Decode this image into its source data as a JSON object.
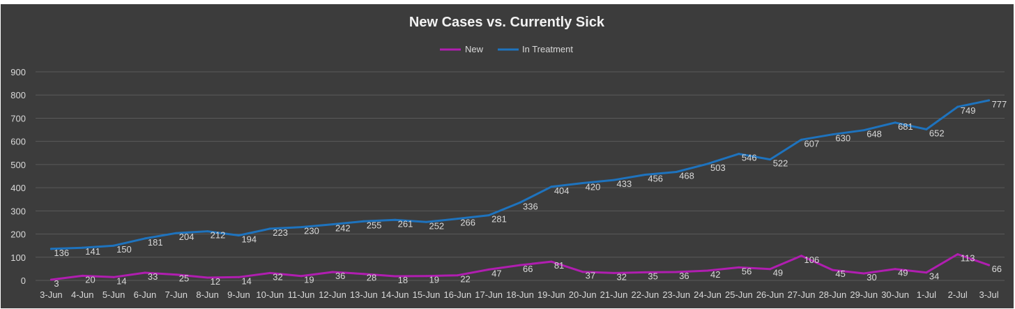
{
  "chart_data": {
    "type": "line",
    "title": "New Cases vs. Currently Sick",
    "xlabel": "",
    "ylabel": "",
    "ylim": [
      0,
      900
    ],
    "yticks": [
      0,
      100,
      200,
      300,
      400,
      500,
      600,
      700,
      800,
      900
    ],
    "grid": true,
    "legend_position": "top-center",
    "categories": [
      "3-Jun",
      "4-Jun",
      "5-Jun",
      "6-Jun",
      "7-Jun",
      "8-Jun",
      "9-Jun",
      "10-Jun",
      "11-Jun",
      "12-Jun",
      "13-Jun",
      "14-Jun",
      "15-Jun",
      "16-Jun",
      "17-Jun",
      "18-Jun",
      "19-Jun",
      "20-Jun",
      "21-Jun",
      "22-Jun",
      "23-Jun",
      "24-Jun",
      "25-Jun",
      "26-Jun",
      "27-Jun",
      "28-Jun",
      "29-Jun",
      "30-Jun",
      "1-Jul",
      "2-Jul",
      "3-Jul"
    ],
    "series": [
      {
        "name": "New",
        "color": "#b01eb0",
        "values": [
          3,
          20,
          14,
          33,
          25,
          12,
          14,
          32,
          19,
          36,
          28,
          18,
          19,
          22,
          47,
          66,
          81,
          37,
          32,
          35,
          36,
          42,
          56,
          49,
          106,
          45,
          30,
          49,
          34,
          113,
          66
        ]
      },
      {
        "name": "In Treatment",
        "color": "#1e73be",
        "values": [
          136,
          141,
          150,
          181,
          204,
          212,
          194,
          223,
          230,
          242,
          255,
          261,
          252,
          266,
          281,
          336,
          404,
          420,
          433,
          456,
          468,
          503,
          546,
          522,
          607,
          630,
          648,
          681,
          652,
          749,
          777
        ]
      }
    ]
  }
}
